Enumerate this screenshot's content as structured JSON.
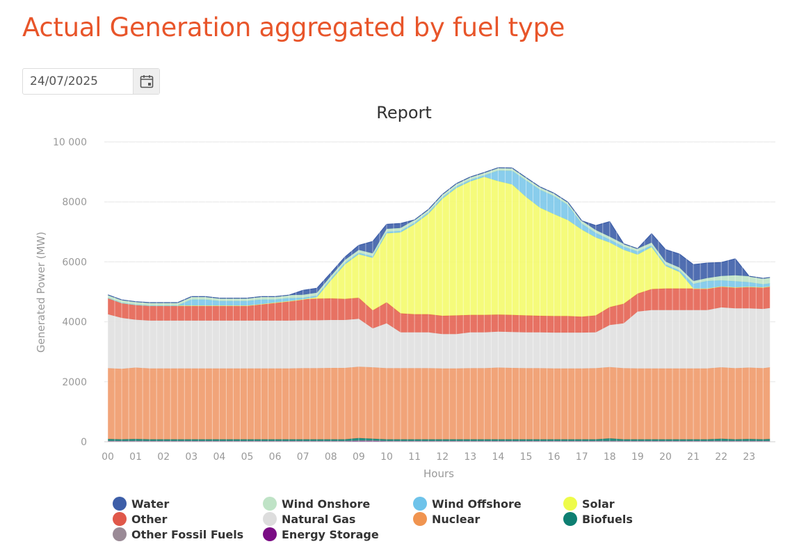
{
  "page": {
    "title": "Actual Generation aggregated by fuel type"
  },
  "date_picker": {
    "value": "24/07/2025",
    "icon": "calendar-icon"
  },
  "chart_data": {
    "type": "area",
    "stacked": true,
    "title": "Report",
    "xlabel": "Hours",
    "ylabel": "Generated Power (MW)",
    "ylim": [
      0,
      10000
    ],
    "yticks": [
      0,
      2000,
      4000,
      6000,
      8000,
      10000
    ],
    "ytick_labels": [
      "0",
      "2000",
      "4000",
      "6000",
      "8000",
      "10 000"
    ],
    "xticks": [
      "00",
      "01",
      "02",
      "03",
      "04",
      "05",
      "06",
      "07",
      "08",
      "09",
      "10",
      "11",
      "12",
      "13",
      "14",
      "15",
      "16",
      "17",
      "18",
      "19",
      "20",
      "21",
      "22",
      "23"
    ],
    "x_hours": [
      0,
      0.5,
      1,
      1.5,
      2,
      2.5,
      3,
      3.5,
      4,
      4.5,
      5,
      5.5,
      6,
      6.5,
      7,
      7.5,
      8,
      8.5,
      9,
      9.5,
      10,
      10.5,
      11,
      11.5,
      12,
      12.5,
      13,
      13.5,
      14,
      14.5,
      15,
      15.5,
      16,
      16.5,
      17,
      17.5,
      18,
      18.5,
      19,
      19.5,
      20,
      20.5,
      21,
      21.5,
      22,
      22.5,
      23,
      23.5,
      23.75
    ],
    "grid": true,
    "legend_position": "bottom",
    "series": [
      {
        "name": "Energy Storage",
        "color": "#7b0f86",
        "values": [
          20,
          20,
          20,
          20,
          20,
          20,
          20,
          20,
          20,
          20,
          20,
          20,
          20,
          20,
          20,
          20,
          20,
          20,
          30,
          30,
          20,
          20,
          20,
          20,
          20,
          20,
          20,
          20,
          20,
          20,
          20,
          20,
          20,
          20,
          20,
          20,
          20,
          20,
          20,
          20,
          20,
          20,
          20,
          20,
          20,
          20,
          20,
          20,
          20
        ]
      },
      {
        "name": "Other Fossil Fuels",
        "color": "#9e8e9a",
        "values": [
          10,
          10,
          10,
          10,
          10,
          10,
          10,
          10,
          10,
          10,
          10,
          10,
          10,
          10,
          10,
          10,
          10,
          10,
          10,
          10,
          10,
          10,
          10,
          10,
          10,
          10,
          10,
          10,
          10,
          10,
          10,
          10,
          10,
          10,
          10,
          10,
          10,
          10,
          10,
          10,
          10,
          10,
          10,
          10,
          10,
          10,
          10,
          10,
          10
        ]
      },
      {
        "name": "Biofuels",
        "color": "#0e8274",
        "values": [
          60,
          50,
          60,
          50,
          50,
          50,
          50,
          50,
          50,
          50,
          50,
          50,
          50,
          50,
          50,
          50,
          50,
          50,
          80,
          60,
          50,
          50,
          50,
          50,
          50,
          50,
          50,
          50,
          50,
          50,
          50,
          50,
          50,
          50,
          50,
          50,
          80,
          50,
          50,
          50,
          50,
          50,
          50,
          50,
          70,
          50,
          60,
          50,
          60
        ]
      },
      {
        "name": "Nuclear",
        "color": "#f09a6a",
        "values": [
          2360,
          2350,
          2380,
          2360,
          2360,
          2360,
          2360,
          2360,
          2360,
          2360,
          2360,
          2360,
          2360,
          2360,
          2370,
          2370,
          2380,
          2380,
          2380,
          2380,
          2370,
          2370,
          2370,
          2370,
          2360,
          2360,
          2370,
          2370,
          2390,
          2380,
          2370,
          2370,
          2360,
          2360,
          2360,
          2370,
          2380,
          2370,
          2360,
          2360,
          2360,
          2360,
          2360,
          2360,
          2380,
          2370,
          2380,
          2370,
          2390
        ]
      },
      {
        "name": "Natural Gas",
        "color": "#e0e0e0",
        "values": [
          1800,
          1700,
          1600,
          1600,
          1600,
          1600,
          1600,
          1600,
          1600,
          1600,
          1600,
          1600,
          1600,
          1600,
          1600,
          1600,
          1600,
          1600,
          1600,
          1300,
          1500,
          1200,
          1200,
          1200,
          1150,
          1150,
          1200,
          1200,
          1200,
          1200,
          1200,
          1200,
          1200,
          1200,
          1200,
          1200,
          1400,
          1500,
          1900,
          1950,
          1950,
          1950,
          1950,
          1950,
          2000,
          2000,
          1980,
          1980,
          1980
        ]
      },
      {
        "name": "Other",
        "color": "#e46352",
        "values": [
          550,
          500,
          500,
          500,
          500,
          500,
          500,
          500,
          500,
          500,
          500,
          550,
          600,
          650,
          700,
          720,
          720,
          700,
          700,
          600,
          700,
          630,
          600,
          600,
          610,
          620,
          580,
          580,
          570,
          570,
          560,
          550,
          550,
          550,
          530,
          560,
          600,
          650,
          600,
          700,
          720,
          720,
          720,
          720,
          700,
          700,
          720,
          720,
          720
        ]
      },
      {
        "name": "Solar",
        "color": "#f4fb6d",
        "values": [
          0,
          0,
          0,
          0,
          0,
          0,
          0,
          0,
          0,
          0,
          0,
          0,
          0,
          0,
          0,
          50,
          600,
          1150,
          1450,
          1750,
          2300,
          2700,
          3000,
          3350,
          3900,
          4250,
          4450,
          4600,
          4450,
          4350,
          3950,
          3600,
          3400,
          3200,
          2900,
          2600,
          2150,
          1800,
          1300,
          1400,
          750,
          550,
          0,
          0,
          0,
          0,
          0,
          0,
          0
        ]
      },
      {
        "name": "Wind Offshore",
        "color": "#7cc8ea",
        "values": [
          0,
          0,
          0,
          0,
          0,
          0,
          200,
          200,
          150,
          150,
          150,
          150,
          100,
          100,
          50,
          50,
          50,
          50,
          50,
          50,
          50,
          50,
          50,
          50,
          50,
          50,
          50,
          50,
          350,
          450,
          550,
          600,
          600,
          500,
          200,
          150,
          100,
          100,
          100,
          50,
          50,
          50,
          150,
          250,
          200,
          200,
          150,
          100,
          100
        ]
      },
      {
        "name": "Wind Onshore",
        "color": "#bfe3c6",
        "values": [
          100,
          100,
          100,
          100,
          100,
          100,
          100,
          100,
          100,
          100,
          100,
          100,
          100,
          100,
          100,
          100,
          100,
          100,
          100,
          100,
          100,
          100,
          100,
          100,
          100,
          100,
          100,
          100,
          100,
          100,
          100,
          100,
          100,
          100,
          100,
          100,
          100,
          100,
          100,
          100,
          100,
          100,
          100,
          100,
          150,
          200,
          200,
          200,
          200
        ]
      },
      {
        "name": "Water",
        "color": "#3d5ea8",
        "values": [
          0,
          0,
          0,
          0,
          0,
          0,
          0,
          0,
          0,
          0,
          0,
          0,
          0,
          0,
          150,
          150,
          100,
          100,
          150,
          400,
          150,
          150,
          0,
          0,
          0,
          0,
          0,
          0,
          0,
          0,
          0,
          0,
          0,
          0,
          0,
          150,
          500,
          0,
          0,
          300,
          400,
          450,
          550,
          500,
          450,
          550,
          0,
          0,
          0
        ]
      }
    ]
  },
  "legend": {
    "items": [
      {
        "label": "Water",
        "color": "#3d5ea8"
      },
      {
        "label": "Wind Onshore",
        "color": "#bfe3c6"
      },
      {
        "label": "Wind Offshore",
        "color": "#6ec3ea"
      },
      {
        "label": "Solar",
        "color": "#eefb4a"
      },
      {
        "label": "Other",
        "color": "#e0584a"
      },
      {
        "label": "Natural Gas",
        "color": "#dddddd"
      },
      {
        "label": "Nuclear",
        "color": "#f09450"
      },
      {
        "label": "Biofuels",
        "color": "#0e7f72"
      },
      {
        "label": "Other Fossil Fuels",
        "color": "#9a8a96"
      },
      {
        "label": "Energy Storage",
        "color": "#7a0c84"
      }
    ]
  }
}
